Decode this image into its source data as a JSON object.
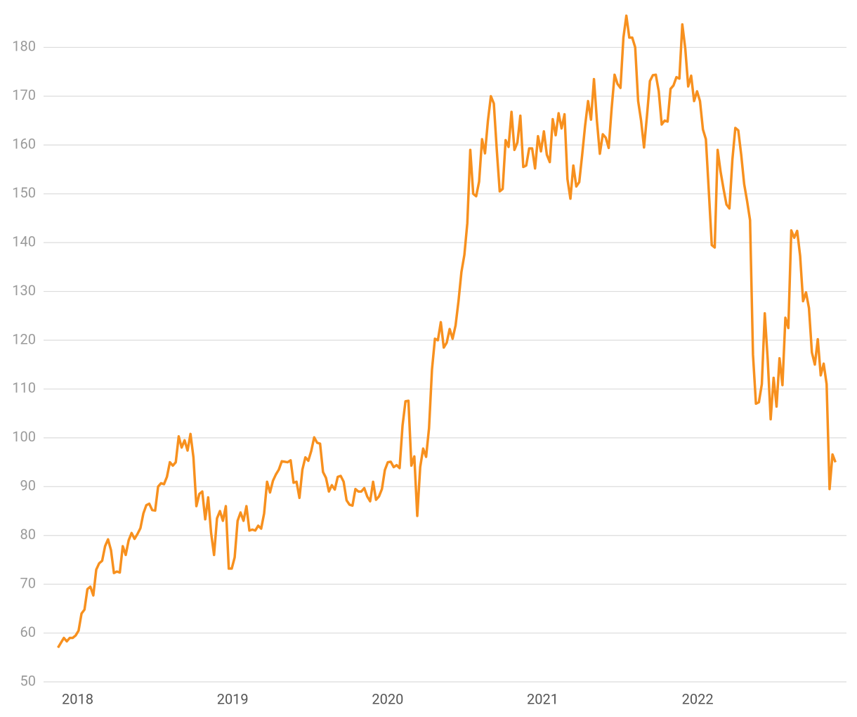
{
  "chart_data": {
    "type": "line",
    "x": [
      2017.873,
      2017.892,
      2017.911,
      2017.93,
      2017.949,
      2017.968,
      2017.987,
      2018.006,
      2018.025,
      2018.044,
      2018.063,
      2018.082,
      2018.101,
      2018.12,
      2018.139,
      2018.158,
      2018.177,
      2018.196,
      2018.215,
      2018.234,
      2018.253,
      2018.272,
      2018.291,
      2018.31,
      2018.329,
      2018.348,
      2018.367,
      2018.386,
      2018.405,
      2018.424,
      2018.443,
      2018.462,
      2018.481,
      2018.5,
      2018.519,
      2018.538,
      2018.557,
      2018.576,
      2018.595,
      2018.614,
      2018.633,
      2018.652,
      2018.671,
      2018.69,
      2018.709,
      2018.728,
      2018.747,
      2018.766,
      2018.785,
      2018.804,
      2018.823,
      2018.842,
      2018.861,
      2018.88,
      2018.899,
      2018.918,
      2018.937,
      2018.956,
      2018.975,
      2018.994,
      2019.013,
      2019.032,
      2019.051,
      2019.07,
      2019.089,
      2019.108,
      2019.127,
      2019.146,
      2019.165,
      2019.184,
      2019.203,
      2019.222,
      2019.241,
      2019.26,
      2019.279,
      2019.298,
      2019.317,
      2019.336,
      2019.355,
      2019.374,
      2019.393,
      2019.412,
      2019.431,
      2019.45,
      2019.469,
      2019.488,
      2019.507,
      2019.526,
      2019.545,
      2019.564,
      2019.583,
      2019.602,
      2019.621,
      2019.64,
      2019.659,
      2019.678,
      2019.697,
      2019.716,
      2019.735,
      2019.754,
      2019.773,
      2019.792,
      2019.811,
      2019.83,
      2019.849,
      2019.868,
      2019.887,
      2019.906,
      2019.925,
      2019.944,
      2019.963,
      2019.982,
      2020.001,
      2020.02,
      2020.039,
      2020.058,
      2020.077,
      2020.096,
      2020.115,
      2020.134,
      2020.153,
      2020.172,
      2020.191,
      2020.21,
      2020.229,
      2020.248,
      2020.267,
      2020.286,
      2020.305,
      2020.324,
      2020.343,
      2020.362,
      2020.381,
      2020.4,
      2020.419,
      2020.438,
      2020.457,
      2020.476,
      2020.495,
      2020.514,
      2020.533,
      2020.552,
      2020.571,
      2020.59,
      2020.609,
      2020.628,
      2020.647,
      2020.666,
      2020.685,
      2020.704,
      2020.723,
      2020.742,
      2020.761,
      2020.78,
      2020.799,
      2020.818,
      2020.837,
      2020.856,
      2020.875,
      2020.894,
      2020.913,
      2020.932,
      2020.951,
      2020.97,
      2020.989,
      2021.008,
      2021.027,
      2021.046,
      2021.065,
      2021.084,
      2021.103,
      2021.122,
      2021.141,
      2021.16,
      2021.179,
      2021.198,
      2021.217,
      2021.236,
      2021.255,
      2021.274,
      2021.293,
      2021.312,
      2021.331,
      2021.35,
      2021.369,
      2021.388,
      2021.407,
      2021.426,
      2021.445,
      2021.464,
      2021.483,
      2021.502,
      2021.521,
      2021.54,
      2021.559,
      2021.578,
      2021.597,
      2021.616,
      2021.635,
      2021.654,
      2021.673,
      2021.692,
      2021.711,
      2021.73,
      2021.749,
      2021.768,
      2021.787,
      2021.806,
      2021.825,
      2021.844,
      2021.863,
      2021.882,
      2021.901,
      2021.92,
      2021.939,
      2021.958,
      2021.977,
      2021.996,
      2022.015,
      2022.034,
      2022.053,
      2022.072,
      2022.091,
      2022.11,
      2022.129,
      2022.148,
      2022.167,
      2022.186,
      2022.205,
      2022.224,
      2022.243,
      2022.262,
      2022.281,
      2022.3,
      2022.319,
      2022.338,
      2022.357,
      2022.376,
      2022.395,
      2022.414,
      2022.433,
      2022.452,
      2022.471,
      2022.49,
      2022.509,
      2022.528,
      2022.547,
      2022.566,
      2022.585,
      2022.604,
      2022.623,
      2022.642,
      2022.661,
      2022.68,
      2022.699,
      2022.718,
      2022.737,
      2022.756,
      2022.775,
      2022.794,
      2022.813,
      2022.832,
      2022.851,
      2022.87,
      2022.889
    ],
    "series": [
      {
        "color": "#f7901e",
        "values": [
          57,
          58,
          59,
          58.3,
          59,
          59,
          59.5,
          60.5,
          64,
          64.8,
          69,
          69.5,
          67.7,
          73,
          74.3,
          74.8,
          77.8,
          79.2,
          77,
          72.3,
          72.6,
          72.4,
          77.8,
          76,
          79,
          80.5,
          79.3,
          80.3,
          81.5,
          84.5,
          86.2,
          86.5,
          85.2,
          85.1,
          90,
          90.7,
          90.5,
          92,
          95,
          94.3,
          95,
          100.3,
          98,
          99.5,
          97.4,
          100.8,
          96,
          86,
          88.5,
          89,
          83.3,
          87.8,
          80.5,
          76,
          83.5,
          85,
          83,
          86,
          73.2,
          73.2,
          75.5,
          83,
          84.7,
          83,
          86,
          81,
          81.2,
          81,
          82,
          81.4,
          84.5,
          91,
          88.8,
          91.2,
          92.5,
          93.5,
          95.2,
          95.1,
          95,
          95.4,
          90.8,
          91,
          87.7,
          93.5,
          96,
          95.3,
          97.3,
          100.1,
          99,
          98.8,
          93,
          91.8,
          89,
          90.3,
          89.4,
          92,
          92.2,
          91,
          87.2,
          86.3,
          86.1,
          89.5,
          89,
          89,
          89.7,
          88,
          87,
          91,
          87.3,
          88,
          89.5,
          93.4,
          95,
          95.1,
          94,
          94.4,
          93.8,
          102.5,
          107.5,
          107.6,
          94.3,
          96.2,
          84,
          94,
          97.8,
          96.1,
          102,
          114,
          120.3,
          120,
          123.7,
          118.5,
          119.5,
          122.3,
          120.3,
          123,
          128,
          134,
          137.5,
          144,
          159,
          150,
          149.5,
          152.5,
          161.2,
          158.3,
          165,
          170,
          168.5,
          159,
          150.5,
          151,
          161,
          159.6,
          166.8,
          159,
          160.5,
          166,
          155.5,
          155.8,
          159.3,
          159.3,
          155.2,
          161.8,
          158.7,
          162.8,
          158,
          156.5,
          165.3,
          162,
          166.5,
          163.4,
          166.3,
          153,
          149,
          155.8,
          151.5,
          152.4,
          158,
          164,
          169,
          165.2,
          173.5,
          165,
          158.2,
          162.2,
          161.5,
          159.4,
          167.5,
          174.4,
          172.5,
          171.7,
          182,
          186.5,
          182,
          182,
          180,
          169,
          165,
          159.5,
          166,
          173.1,
          174.3,
          174.4,
          171,
          164.2,
          165,
          164.8,
          171.5,
          172.2,
          173.9,
          173.6,
          184.7,
          179.8,
          172,
          174.2,
          169,
          171,
          169,
          163.2,
          161.2,
          150.5,
          139.5,
          139,
          159,
          154.5,
          151,
          147.8,
          147,
          157,
          163.5,
          163,
          158,
          152,
          148.5,
          144.6,
          117,
          107,
          107.3,
          111,
          125.5,
          116,
          103.8,
          112.3,
          106.4,
          116.3,
          110.8,
          124.6,
          122.5,
          142.5,
          141,
          142.4,
          137.3,
          128,
          129.8,
          126.6,
          117.5,
          115,
          120.2,
          112.8,
          115.2,
          111,
          89.5,
          96.6,
          95
        ]
      }
    ],
    "xlim": [
      2017.78,
      2022.96
    ],
    "xticks": [
      2018,
      2019,
      2020,
      2021,
      2022
    ],
    "ylim": [
      50,
      190
    ],
    "yticks": [
      50,
      60,
      70,
      80,
      90,
      100,
      110,
      120,
      130,
      140,
      150,
      160,
      170,
      180
    ],
    "grid": true
  }
}
